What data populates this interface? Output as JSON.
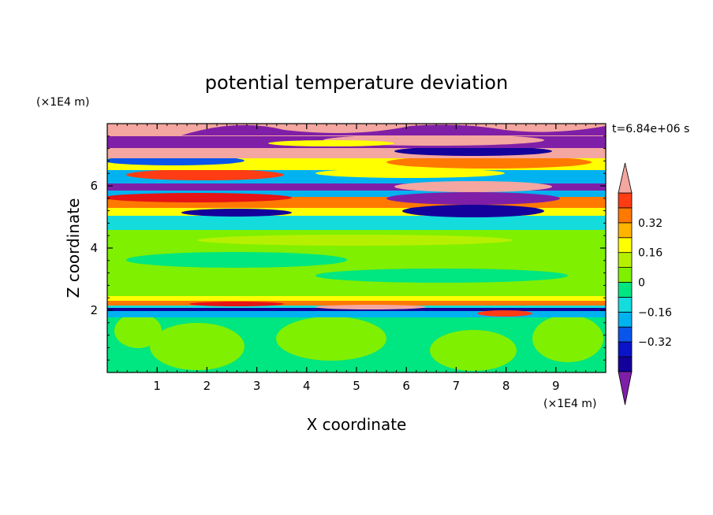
{
  "chart_data": {
    "type": "heatmap",
    "title": "potential temperature deviation",
    "xlabel": "X coordinate",
    "ylabel": "Z coordinate",
    "x_unit": "(×1E4 m)",
    "y_unit": "(×1E4 m)",
    "time_label": "t=6.84e+06 s",
    "xlim": [
      0,
      10
    ],
    "ylim": [
      0,
      8
    ],
    "x_ticks": [
      "1",
      "2",
      "3",
      "4",
      "5",
      "6",
      "7",
      "8",
      "9"
    ],
    "y_ticks": [
      "2",
      "4",
      "6"
    ],
    "colorbar": {
      "levels": [
        -0.48,
        -0.4,
        -0.32,
        -0.24,
        -0.16,
        -0.08,
        0,
        0.08,
        0.16,
        0.24,
        0.32,
        0.4,
        0.48
      ],
      "tick_labels": [
        "0.32",
        "0.16",
        "0",
        "−0.16",
        "−0.32"
      ],
      "tick_values": [
        0.32,
        0.16,
        0,
        -0.16,
        -0.32
      ],
      "under_color": "#7f1fa8",
      "over_color": "#f4a6a0",
      "colors": [
        "#14009a",
        "#0a14c8",
        "#0a55ea",
        "#00b3f0",
        "#14dcdc",
        "#00e680",
        "#7ff000",
        "#b6f000",
        "#ffff00",
        "#ffb400",
        "#ff7800",
        "#ff3c14",
        "#e61414"
      ]
    },
    "field_bands": [
      {
        "z": [
          0.0,
          1.4
        ],
        "value": 0.0,
        "note": "lower layer, mostly green with light-green cells"
      },
      {
        "z": [
          1.95,
          2.1
        ],
        "value": -0.32,
        "note": "thin dark-blue line with red/orange above"
      },
      {
        "z": [
          2.2,
          4.4
        ],
        "value": 0.04,
        "note": "broad light-green layer"
      },
      {
        "z": [
          4.4,
          5.0
        ],
        "value": -0.1,
        "note": "cyan/yellow mixing"
      },
      {
        "z": [
          5.0,
          5.6
        ],
        "value": 0.35,
        "note": "red/orange layer"
      },
      {
        "z": [
          5.8,
          6.1
        ],
        "value": -0.45,
        "note": "purple layer"
      },
      {
        "z": [
          6.3,
          6.8
        ],
        "value": 0.2,
        "note": "yellow/orange layer"
      },
      {
        "z": [
          7.2,
          7.4
        ],
        "value": 0.5,
        "note": "pink layer"
      },
      {
        "z": [
          7.4,
          7.8
        ],
        "value": -0.5,
        "note": "purple layer near top"
      }
    ]
  }
}
